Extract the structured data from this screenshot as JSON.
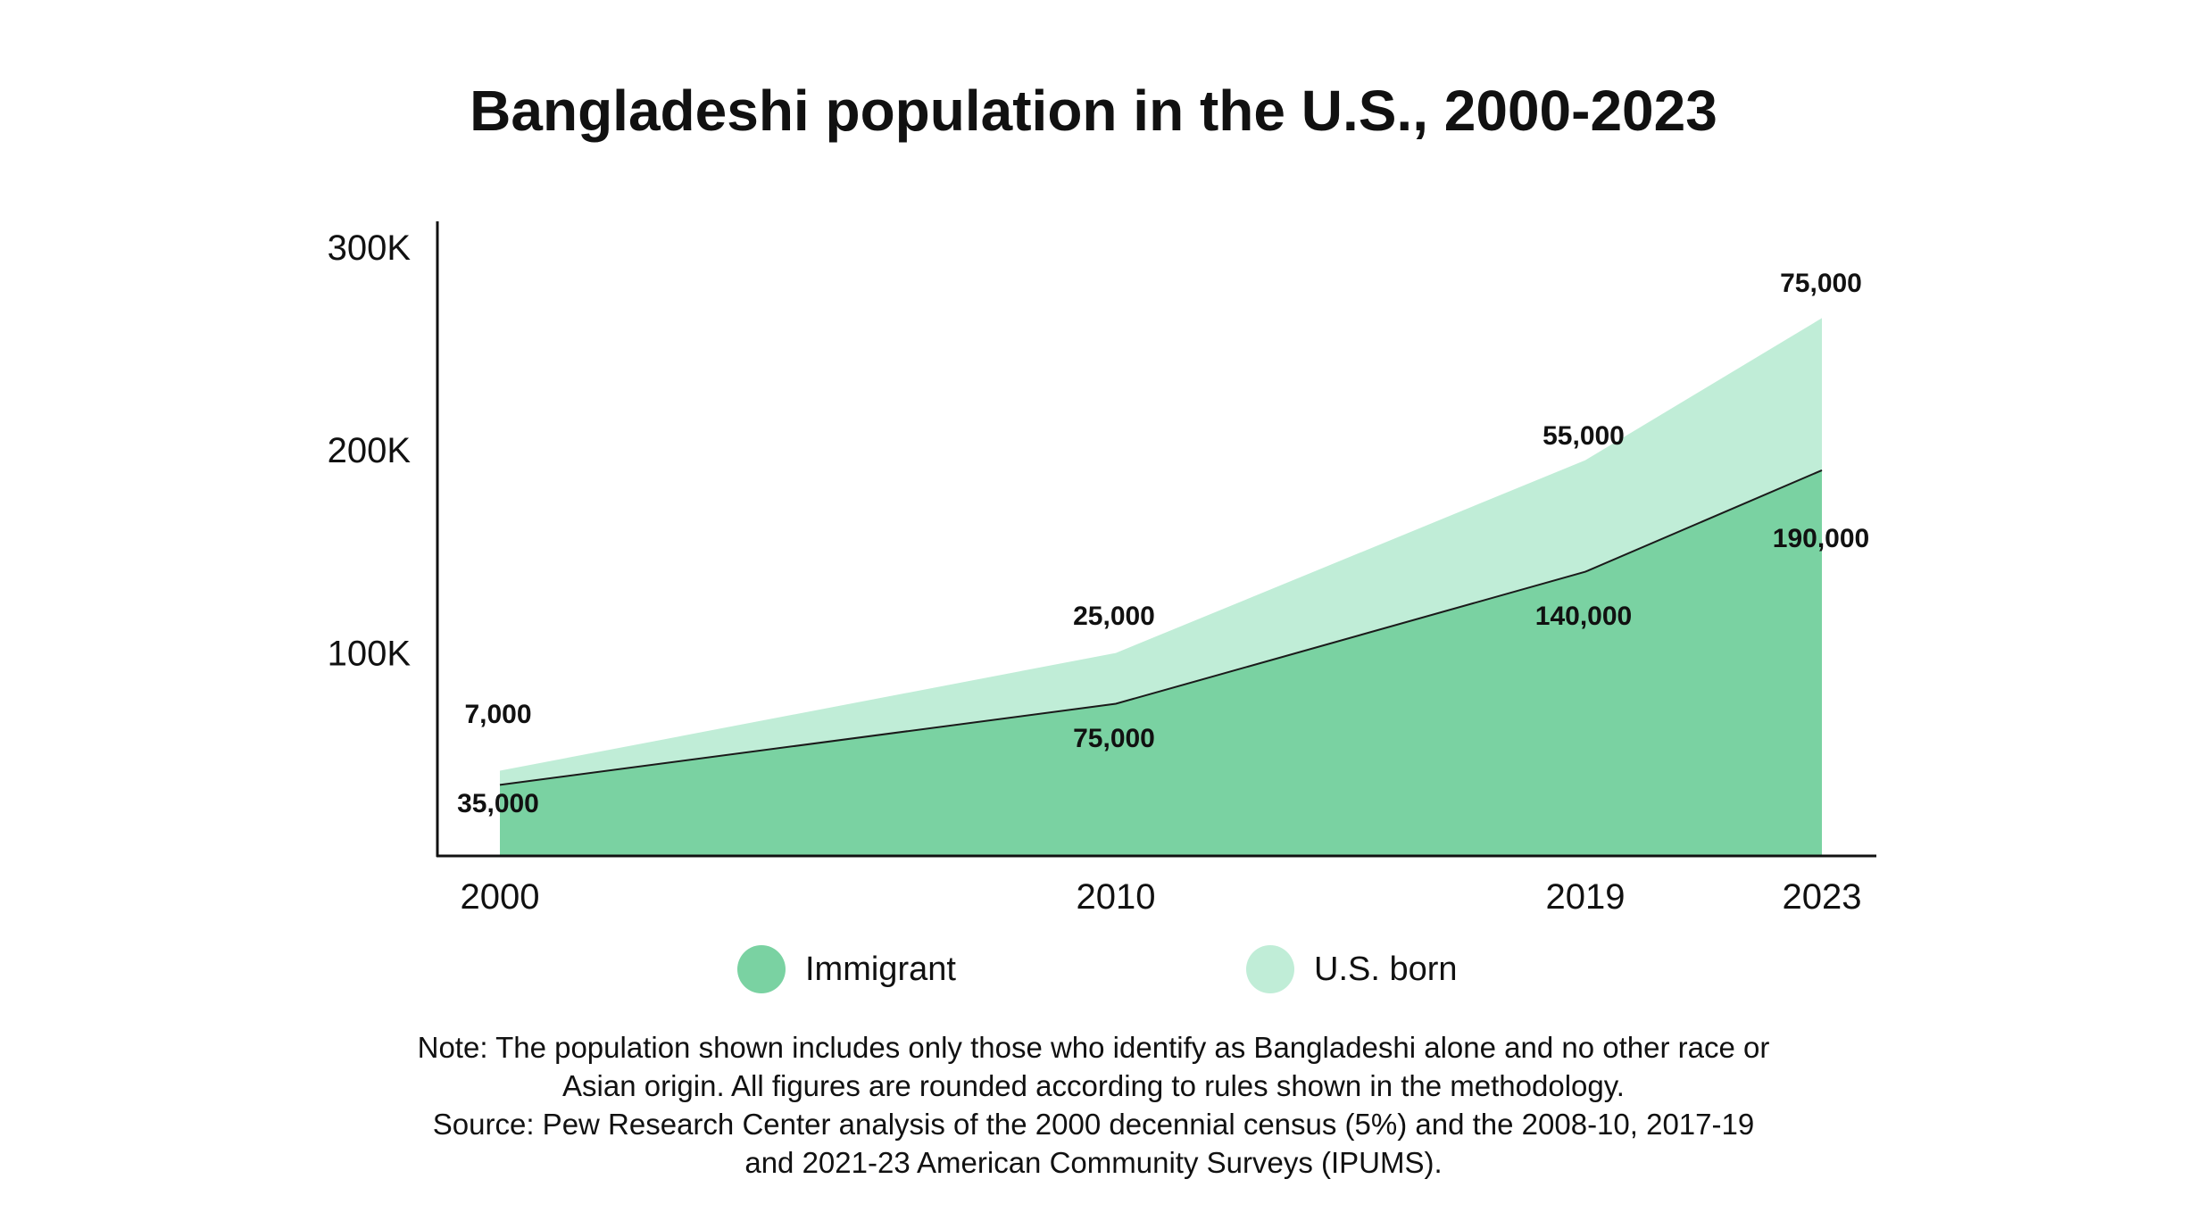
{
  "chart_data": {
    "type": "area",
    "stacked": true,
    "title": "Bangladeshi population in the U.S., 2000-2023",
    "xlabel": "",
    "ylabel": "",
    "x": [
      2000,
      2010,
      2019,
      2023
    ],
    "x_tick_labels": [
      "2000",
      "2010",
      "2019",
      "2023"
    ],
    "ylim": [
      0,
      320000
    ],
    "y_ticks": [
      100000,
      200000,
      300000
    ],
    "y_tick_labels": [
      "100K",
      "200K",
      "300K"
    ],
    "grid": false,
    "legend_position": "bottom",
    "series": [
      {
        "name": "Immigrant",
        "values": [
          35000,
          75000,
          140000,
          190000
        ],
        "labels": [
          "35,000",
          "75,000",
          "140,000",
          "190,000"
        ],
        "color": "#7ad2a2"
      },
      {
        "name": "U.S. born",
        "values": [
          7000,
          25000,
          55000,
          75000
        ],
        "labels": [
          "7,000",
          "25,000",
          "55,000",
          "75,000"
        ],
        "color": "#c0edd7"
      }
    ]
  },
  "legend": {
    "items": [
      {
        "label": "Immigrant",
        "color": "#7ad2a2"
      },
      {
        "label": "U.S. born",
        "color": "#c0edd7"
      }
    ]
  },
  "note": {
    "lines": [
      "Note: The population shown includes only those who identify as Bangladeshi alone and no other race or",
      "Asian origin. All figures are rounded according to rules shown in the methodology.",
      "Source: Pew Research Center analysis of the 2000 decennial census (5%) and the 2008-10, 2017-19",
      "and 2021-23 American Community Surveys (IPUMS)."
    ]
  }
}
